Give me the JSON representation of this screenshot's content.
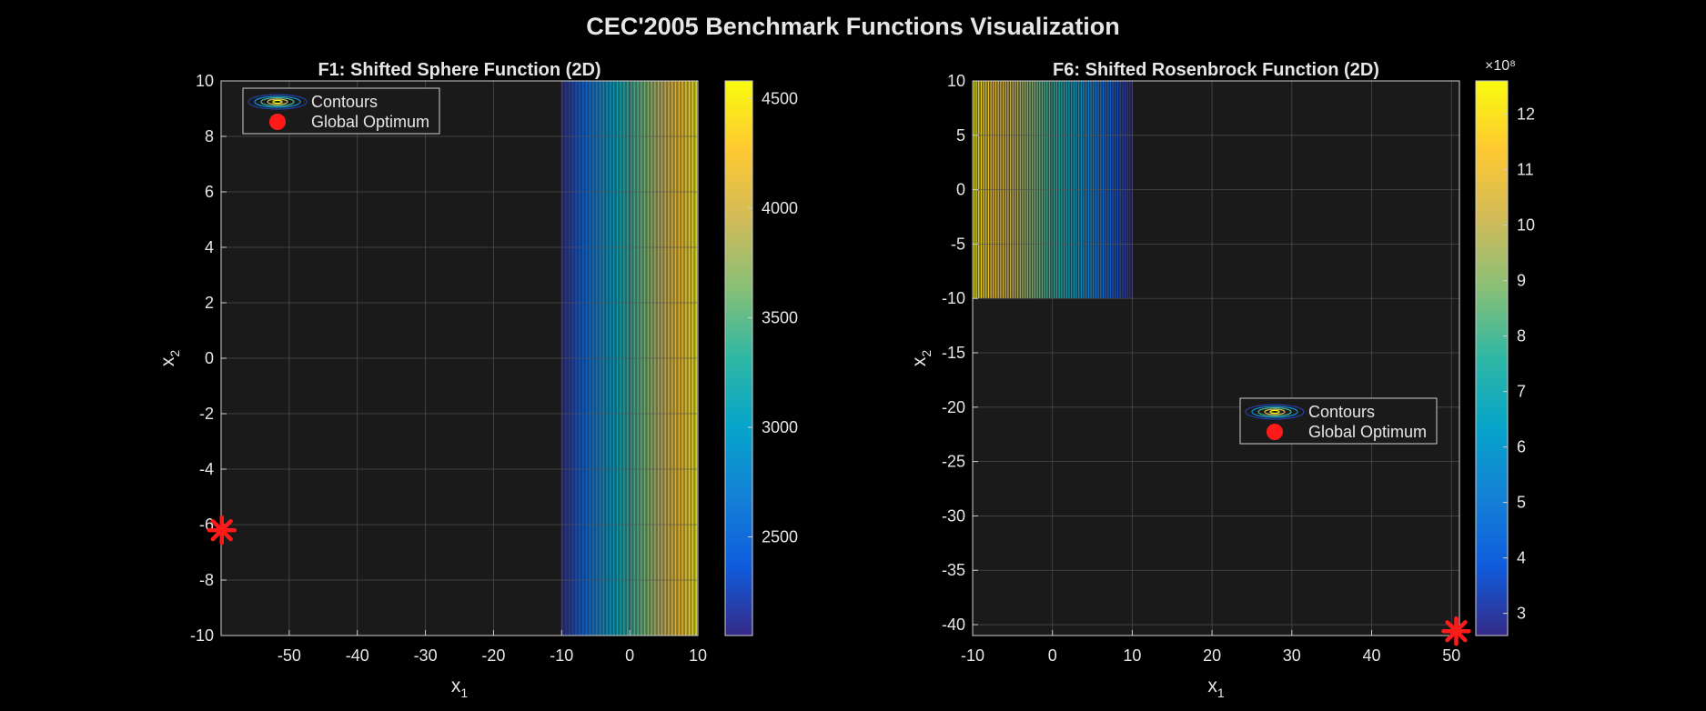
{
  "figure": {
    "title": "CEC'2005 Benchmark Functions Visualization"
  },
  "colors": {
    "background": "#000000",
    "axes_background": "#1a1a1a",
    "grid": "#555555",
    "text": "#e6e6e6",
    "optimum": "#ff1a1a",
    "parula": [
      "#352a87",
      "#0f5cdd",
      "#1481d6",
      "#06a4ca",
      "#2eb7a4",
      "#87bf77",
      "#d1bb59",
      "#fec832",
      "#f9fb0e"
    ]
  },
  "chart_data": [
    {
      "type": "contour",
      "title": "F1: Shifted Sphere Function (2D)",
      "xlabel": "x1",
      "ylabel": "x2",
      "xlim": [
        -60,
        10
      ],
      "ylim": [
        -10,
        10
      ],
      "xticks": [
        -50,
        -40,
        -30,
        -20,
        -10,
        0,
        10
      ],
      "yticks": [
        -10,
        -8,
        -6,
        -4,
        -2,
        0,
        2,
        4,
        6,
        8,
        10
      ],
      "grid": true,
      "contour_region": {
        "x": [
          -10,
          10
        ],
        "y": [
          -10,
          10
        ]
      },
      "colorbar": {
        "range": [
          2050,
          4580
        ],
        "ticks": [
          2500,
          3000,
          3500,
          4000,
          4500
        ],
        "exponent_label": ""
      },
      "legend": {
        "location": "top-left",
        "entries": [
          "Contours",
          "Global Optimum"
        ]
      },
      "global_optimum": {
        "x1": -59.9,
        "x2": -6.2
      }
    },
    {
      "type": "contour",
      "title": "F6: Shifted Rosenbrock Function (2D)",
      "xlabel": "x1",
      "ylabel": "x2",
      "xlim": [
        -10,
        51
      ],
      "ylim": [
        -41,
        10
      ],
      "xticks": [
        -10,
        0,
        10,
        20,
        30,
        40,
        50
      ],
      "yticks": [
        -40,
        -35,
        -30,
        -25,
        -20,
        -15,
        -10,
        -5,
        0,
        5,
        10
      ],
      "grid": true,
      "contour_region": {
        "x": [
          -10,
          10
        ],
        "y": [
          -10,
          10
        ]
      },
      "colorbar": {
        "range": [
          2.6,
          12.6
        ],
        "ticks": [
          3,
          4,
          5,
          6,
          7,
          8,
          9,
          10,
          11,
          12
        ],
        "exponent_label": "×10⁸"
      },
      "legend": {
        "location": "middle-right",
        "entries": [
          "Contours",
          "Global Optimum"
        ]
      },
      "global_optimum": {
        "x1": 50.6,
        "x2": -40.6
      }
    }
  ]
}
